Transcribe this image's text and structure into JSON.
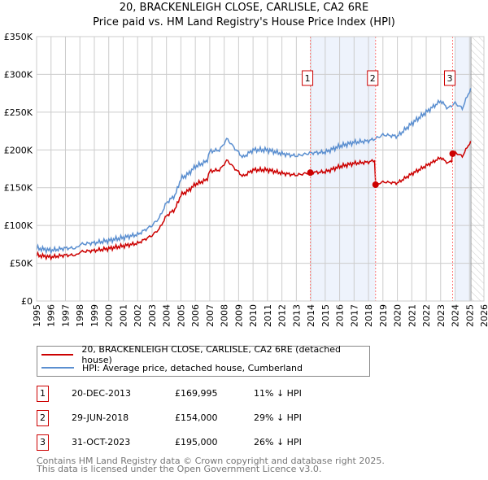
{
  "chart_data": {
    "type": "line",
    "title": "20, BRACKENLEIGH CLOSE, CARLISLE, CA2 6RE",
    "subtitle": "Price paid vs. HM Land Registry's House Price Index (HPI)",
    "xlim": [
      1995,
      2026
    ],
    "ylim": [
      0,
      350000
    ],
    "y_ticks": [
      {
        "v": 0,
        "label": "£0"
      },
      {
        "v": 50000,
        "label": "£50K"
      },
      {
        "v": 100000,
        "label": "£100K"
      },
      {
        "v": 150000,
        "label": "£150K"
      },
      {
        "v": 200000,
        "label": "£200K"
      },
      {
        "v": 250000,
        "label": "£250K"
      },
      {
        "v": 300000,
        "label": "£300K"
      },
      {
        "v": 350000,
        "label": "£350K"
      }
    ],
    "x_ticks": [
      "1995",
      "1996",
      "1997",
      "1998",
      "1999",
      "2000",
      "2001",
      "2002",
      "2003",
      "2004",
      "2005",
      "2006",
      "2007",
      "2008",
      "2009",
      "2010",
      "2011",
      "2012",
      "2013",
      "2014",
      "2015",
      "2016",
      "2017",
      "2018",
      "2019",
      "2020",
      "2021",
      "2022",
      "2023",
      "2024",
      "2025",
      "2026"
    ],
    "grid": true,
    "hpi_series": {
      "name": "HPI: Average price, detached house, Cumberland",
      "color": "#5b8fd0",
      "x": [
        1995,
        1996,
        1997,
        1997.8,
        1998,
        1999,
        2000,
        2001,
        2002,
        2003,
        2003.5,
        2004,
        2004.6,
        2005,
        2005.5,
        2006,
        2006.8,
        2007,
        2007.7,
        2008.2,
        2008.6,
        2009.3,
        2010,
        2011,
        2012,
        2013,
        2014,
        2015,
        2016,
        2017,
        2018,
        2018.5,
        2019,
        2020,
        2021,
        2022,
        2023,
        2023.5,
        2024,
        2024.5,
        2025,
        2025.1
      ],
      "y": [
        70000,
        67000,
        70000,
        70000,
        75000,
        77000,
        80000,
        84000,
        88000,
        100000,
        110000,
        130000,
        140000,
        162000,
        168000,
        178000,
        185000,
        198000,
        200000,
        215000,
        205000,
        190000,
        200000,
        200000,
        195000,
        192000,
        196000,
        197000,
        205000,
        210000,
        212000,
        215000,
        220000,
        218000,
        235000,
        250000,
        265000,
        255000,
        262000,
        255000,
        278000,
        280000
      ]
    },
    "price_series": {
      "name": "20, BRACKENLEIGH CLOSE, CARLISLE, CA2 6RE (detached house)",
      "color": "#cc0000"
    },
    "sales": [
      {
        "n": "1",
        "x": 2013.97,
        "date": "20-DEC-2013",
        "price": 169995,
        "price_label": "£169,995",
        "hpi": "11% ↓ HPI"
      },
      {
        "n": "2",
        "x": 2018.49,
        "date": "29-JUN-2018",
        "price": 154000,
        "price_label": "£154,000",
        "hpi": "29% ↓ HPI"
      },
      {
        "n": "3",
        "x": 2023.83,
        "date": "31-OCT-2023",
        "price": 195000,
        "price_label": "£195,000",
        "hpi": "26% ↓ HPI"
      }
    ],
    "shaded_ranges": [
      [
        2013.97,
        2018.49
      ],
      [
        2024.0,
        2025.1
      ]
    ],
    "projection_from": 2025.1,
    "legend_placement": "bottom"
  },
  "footer": [
    "Contains HM Land Registry data © Crown copyright and database right 2025.",
    "This data is licensed under the Open Government Licence v3.0."
  ]
}
